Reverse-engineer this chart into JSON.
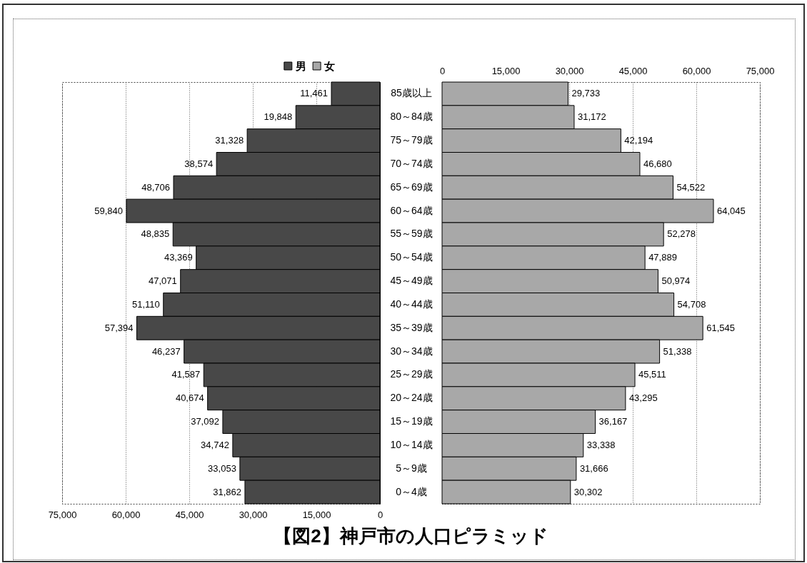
{
  "chart_data": [
    {
      "type": "bar",
      "orientation": "horizontal",
      "title": "【図2】神戸市の人口ピラミッド",
      "categories": [
        "85歳以上",
        "80～84歳",
        "75～79歳",
        "70～74歳",
        "65～69歳",
        "60～64歳",
        "55～59歳",
        "50～54歳",
        "45～49歳",
        "40～44歳",
        "35～39歳",
        "30～34歳",
        "25～29歳",
        "20～24歳",
        "15～19歳",
        "10～14歳",
        "5～9歳",
        "0～4歳"
      ],
      "series": [
        {
          "name": "男",
          "color": "#484848",
          "values": [
            11461,
            19848,
            31328,
            38574,
            48706,
            59840,
            48835,
            43369,
            47071,
            51110,
            57394,
            46237,
            41587,
            40674,
            37092,
            34742,
            33053,
            31862
          ],
          "value_labels": [
            "11,461",
            "19,848",
            "31,328",
            "38,574",
            "48,706",
            "59,840",
            "48,835",
            "43,369",
            "47,071",
            "51,110",
            "57,394",
            "46,237",
            "41,587",
            "40,674",
            "37,092",
            "34,742",
            "33,053",
            "31,862"
          ]
        }
      ],
      "xlim": [
        75000,
        0
      ],
      "xticks": [
        {
          "value": 75000,
          "label": "75,000"
        },
        {
          "value": 60000,
          "label": "60,000"
        },
        {
          "value": 45000,
          "label": "45,000"
        },
        {
          "value": 30000,
          "label": "30,000"
        },
        {
          "value": 15000,
          "label": "15,000"
        },
        0
      ],
      "grid": "x",
      "legend": "top right"
    },
    {
      "type": "bar",
      "orientation": "horizontal",
      "categories": [
        "85歳以上",
        "80～84歳",
        "75～79歳",
        "70～74歳",
        "65～69歳",
        "60～64歳",
        "55～59歳",
        "50～54歳",
        "45～49歳",
        "40～44歳",
        "35～39歳",
        "30～34歳",
        "25～29歳",
        "20～24歳",
        "15～19歳",
        "10～14歳",
        "5～9歳",
        "0～4歳"
      ],
      "series": [
        {
          "name": "女",
          "color": "#a8a8a8",
          "values": [
            29733,
            31172,
            42194,
            46680,
            54522,
            64045,
            52278,
            47889,
            50974,
            54708,
            61545,
            51338,
            45511,
            43295,
            36167,
            33338,
            31666,
            30302
          ],
          "value_labels": [
            "29,733",
            "31,172",
            "42,194",
            "46,680",
            "54,522",
            "64,045",
            "52,278",
            "47,889",
            "50,974",
            "54,708",
            "61,545",
            "51,338",
            "45,511",
            "43,295",
            "36,167",
            "33,338",
            "31,666",
            "30,302"
          ]
        }
      ],
      "xlim": [
        0,
        75000
      ],
      "xticks": [
        0,
        {
          "value": 15000,
          "label": "15,000"
        },
        {
          "value": 30000,
          "label": "30,000"
        },
        {
          "value": 45000,
          "label": "45,000"
        },
        {
          "value": 60000,
          "label": "60,000"
        },
        {
          "value": 75000,
          "label": "75,000"
        }
      ],
      "grid": "x",
      "legend": "top left",
      "tick_labels": "x"
    }
  ]
}
